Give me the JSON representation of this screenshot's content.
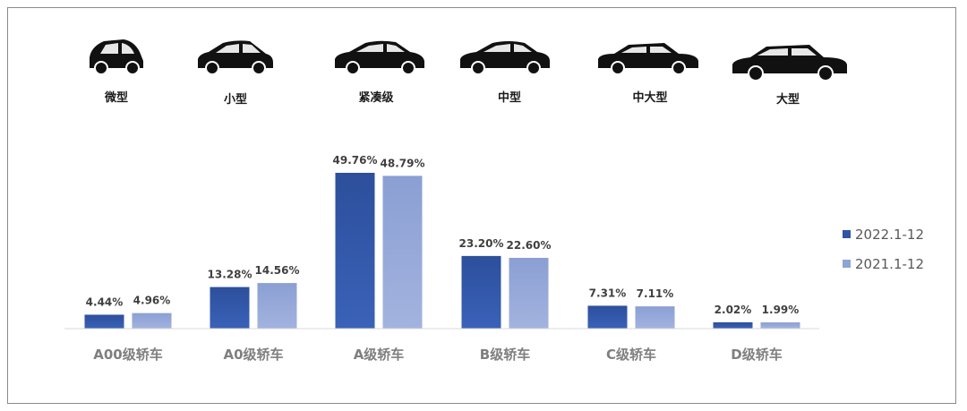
{
  "chart_data": {
    "type": "bar",
    "categories": [
      "A00级轿车",
      "A0级轿车",
      "A级轿车",
      "B级轿车",
      "C级轿车",
      "D级轿车"
    ],
    "series": [
      {
        "name": "2022.1-12",
        "values": [
          4.44,
          13.28,
          49.76,
          23.2,
          7.31,
          2.02
        ],
        "labels": [
          "4.44%",
          "13.28%",
          "49.76%",
          "23.20%",
          "7.31%",
          "2.02%"
        ],
        "color": "#2f55a4"
      },
      {
        "name": "2021.1-12",
        "values": [
          4.96,
          14.56,
          48.79,
          22.6,
          7.11,
          1.99
        ],
        "labels": [
          "4.96%",
          "14.56%",
          "48.79%",
          "22.60%",
          "7.11%",
          "1.99%"
        ],
        "color": "#8ea3d6"
      }
    ],
    "car_types": [
      "微型",
      "小型",
      "紧凑级",
      "中型",
      "中大型",
      "大型"
    ],
    "ylim": [
      0,
      55
    ],
    "legend_position": "right",
    "grid": false
  }
}
